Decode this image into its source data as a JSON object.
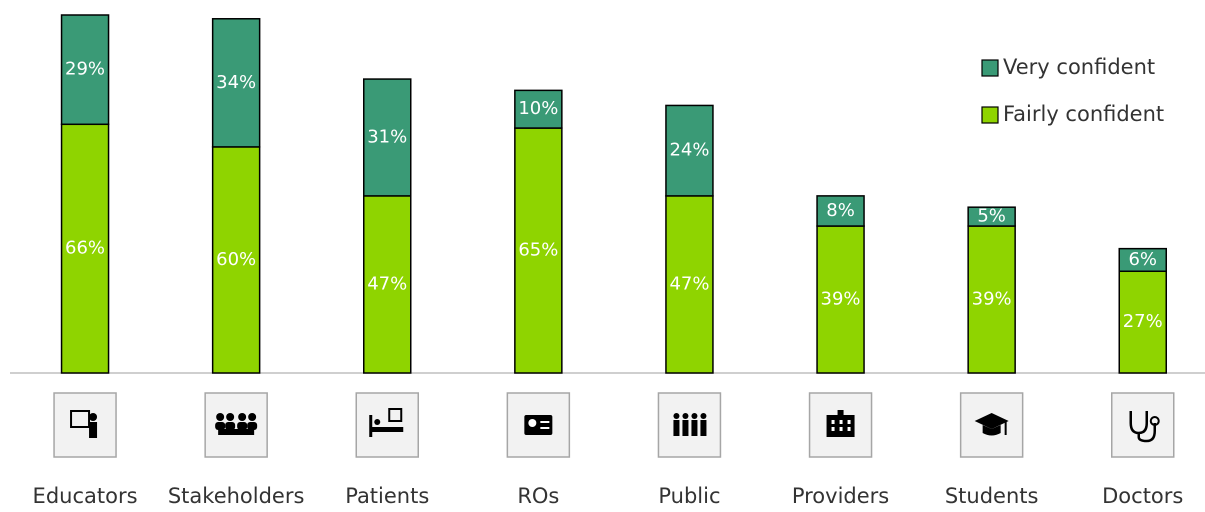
{
  "chart_data": {
    "type": "stacked_bar",
    "categories": [
      "Educators",
      "Stakeholders",
      "Patients",
      "ROs",
      "Public",
      "Providers",
      "Students",
      "Doctors"
    ],
    "series": [
      {
        "name": "Fairly confident",
        "color": "#8fd400",
        "values": [
          66,
          60,
          47,
          65,
          47,
          39,
          39,
          27
        ],
        "value_labels": [
          "66%",
          "60%",
          "47%",
          "65%",
          "47%",
          "39%",
          "39%",
          "27%"
        ]
      },
      {
        "name": "Very confident",
        "color": "#3a9a76",
        "values": [
          29,
          34,
          31,
          10,
          24,
          8,
          5,
          6
        ],
        "value_labels": [
          "29%",
          "34%",
          "31%",
          "10%",
          "24%",
          "8%",
          "5%",
          "6%"
        ]
      }
    ],
    "legend": "top-right"
  }
}
